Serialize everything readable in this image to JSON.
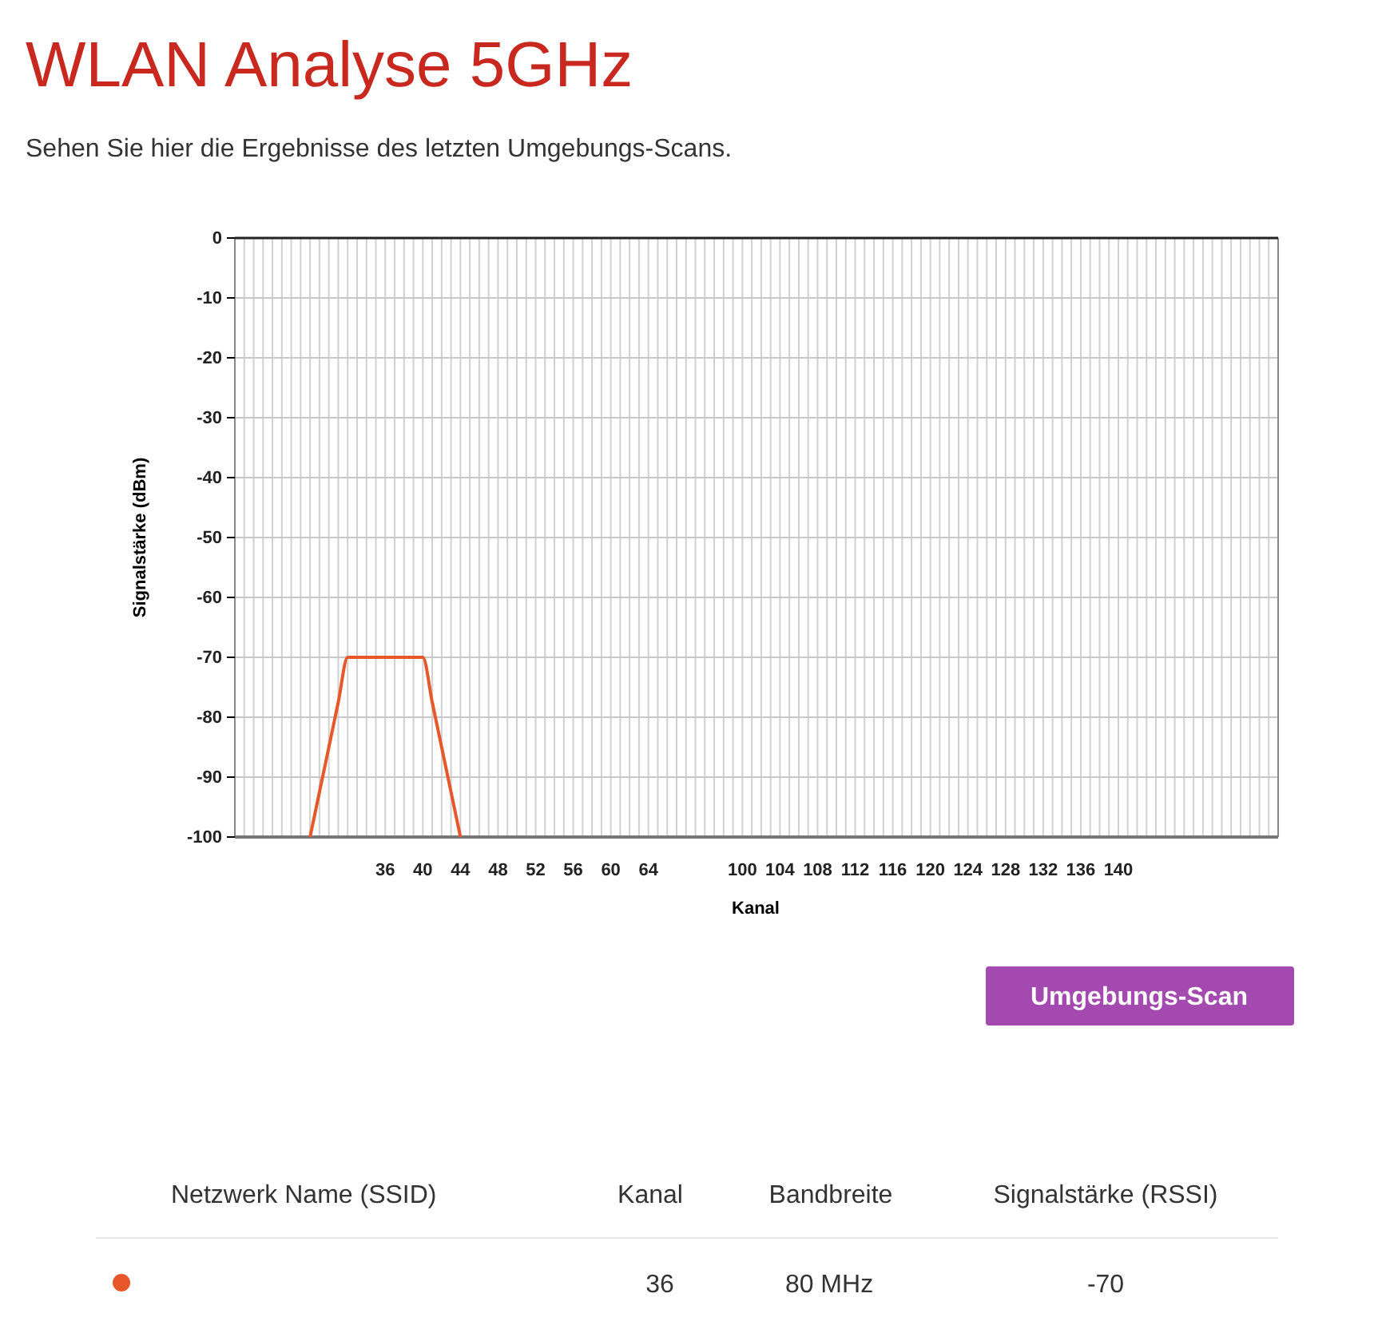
{
  "chart_data": {
    "type": "line",
    "title": "WLAN Analyse 5GHz",
    "subtitle": "Sehen Sie hier die Ergebnisse des letzten Umgebungs-Scans.",
    "xlabel": "Kanal",
    "ylabel": "Signalstärke (dBm)",
    "categories": [
      null,
      null,
      null,
      null,
      null,
      null,
      null,
      null,
      null,
      null,
      null,
      null,
      null,
      null,
      null,
      null,
      "36",
      null,
      null,
      null,
      "40",
      null,
      null,
      null,
      "44",
      null,
      null,
      null,
      "48",
      null,
      null,
      null,
      "52",
      null,
      null,
      null,
      "56",
      null,
      null,
      null,
      "60",
      null,
      null,
      null,
      "64",
      null,
      null,
      null,
      null,
      null,
      null,
      null,
      null,
      null,
      "100",
      null,
      null,
      null,
      "104",
      null,
      null,
      null,
      "108",
      null,
      null,
      null,
      "112",
      null,
      null,
      null,
      "116",
      null,
      null,
      null,
      "120",
      null,
      null,
      null,
      "124",
      null,
      null,
      null,
      "128",
      null,
      null,
      null,
      "132",
      null,
      null,
      null,
      "136",
      null,
      null,
      null,
      "140",
      null,
      null,
      null,
      null,
      null,
      null,
      null,
      null,
      null,
      null,
      null,
      null,
      null,
      null,
      null,
      null,
      null
    ],
    "series": [
      {
        "color": "#e8572a",
        "values": [
          null,
          null,
          null,
          null,
          null,
          null,
          null,
          null,
          -100,
          -92.5,
          -85,
          -77.5,
          -70,
          -70,
          -70,
          -70,
          -70,
          -70,
          -70,
          -70,
          -70,
          -77.5,
          -85,
          -92.5,
          -100,
          null,
          null,
          null,
          null,
          null,
          null,
          null,
          null,
          null,
          null,
          null,
          null,
          null,
          null,
          null,
          null,
          null,
          null,
          null,
          null,
          null,
          null,
          null,
          null,
          null,
          null,
          null,
          null,
          null,
          null,
          null,
          null,
          null,
          null,
          null,
          null,
          null,
          null,
          null,
          null,
          null,
          null,
          null,
          null,
          null,
          null,
          null,
          null,
          null,
          null,
          null,
          null,
          null,
          null,
          null,
          null,
          null,
          null,
          null,
          null,
          null,
          null,
          null,
          null,
          null,
          null,
          null,
          null,
          null,
          null,
          null,
          null,
          null,
          null,
          null,
          null,
          null,
          null,
          null,
          null,
          null,
          null,
          null,
          null,
          null,
          null,
          null
        ]
      }
    ],
    "ylim": [
      -100,
      0
    ],
    "yticks": [
      0,
      -10,
      -20,
      -30,
      -40,
      -50,
      -60,
      -70,
      -80,
      -90,
      -100
    ],
    "grid": true,
    "marker": "none",
    "line_style": "solid",
    "annotations": [
      "Umgebungs-Scan",
      "Netzwerk Name (SSID)",
      "Kanal",
      "Bandbreite",
      "Signalstärke (RSSI)",
      "36",
      "80 MHz",
      "-70"
    ]
  }
}
